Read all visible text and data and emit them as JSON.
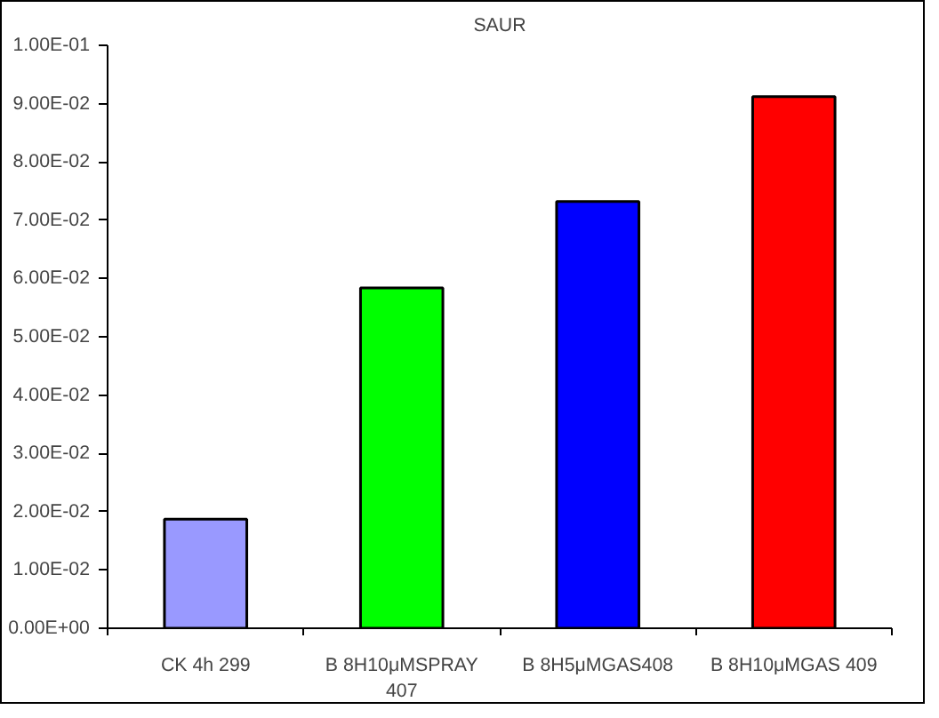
{
  "chart_data": {
    "type": "bar",
    "title": "SAUR",
    "categories": [
      "CK 4h 299",
      "B 8H10μMSPRAY 407",
      "B 8H5μMGAS408",
      "B 8H10μMGAS 409"
    ],
    "values": [
      0.0187,
      0.0584,
      0.0732,
      0.0912
    ],
    "colors": [
      "#9999ff",
      "#00ff00",
      "#0000ff",
      "#ff0000"
    ],
    "ylim": [
      0,
      0.1
    ],
    "yticks": [
      {
        "value": 0,
        "label": "0.00E+00"
      },
      {
        "value": 0.01,
        "label": "1.00E-02"
      },
      {
        "value": 0.02,
        "label": "2.00E-02"
      },
      {
        "value": 0.03,
        "label": "3.00E-02"
      },
      {
        "value": 0.04,
        "label": "4.00E-02"
      },
      {
        "value": 0.05,
        "label": "5.00E-02"
      },
      {
        "value": 0.06,
        "label": "6.00E-02"
      },
      {
        "value": 0.07,
        "label": "7.00E-02"
      },
      {
        "value": 0.08,
        "label": "8.00E-02"
      },
      {
        "value": 0.09,
        "label": "9.00E-02"
      },
      {
        "value": 0.1,
        "label": "1.00E-01"
      }
    ],
    "grid": false
  }
}
